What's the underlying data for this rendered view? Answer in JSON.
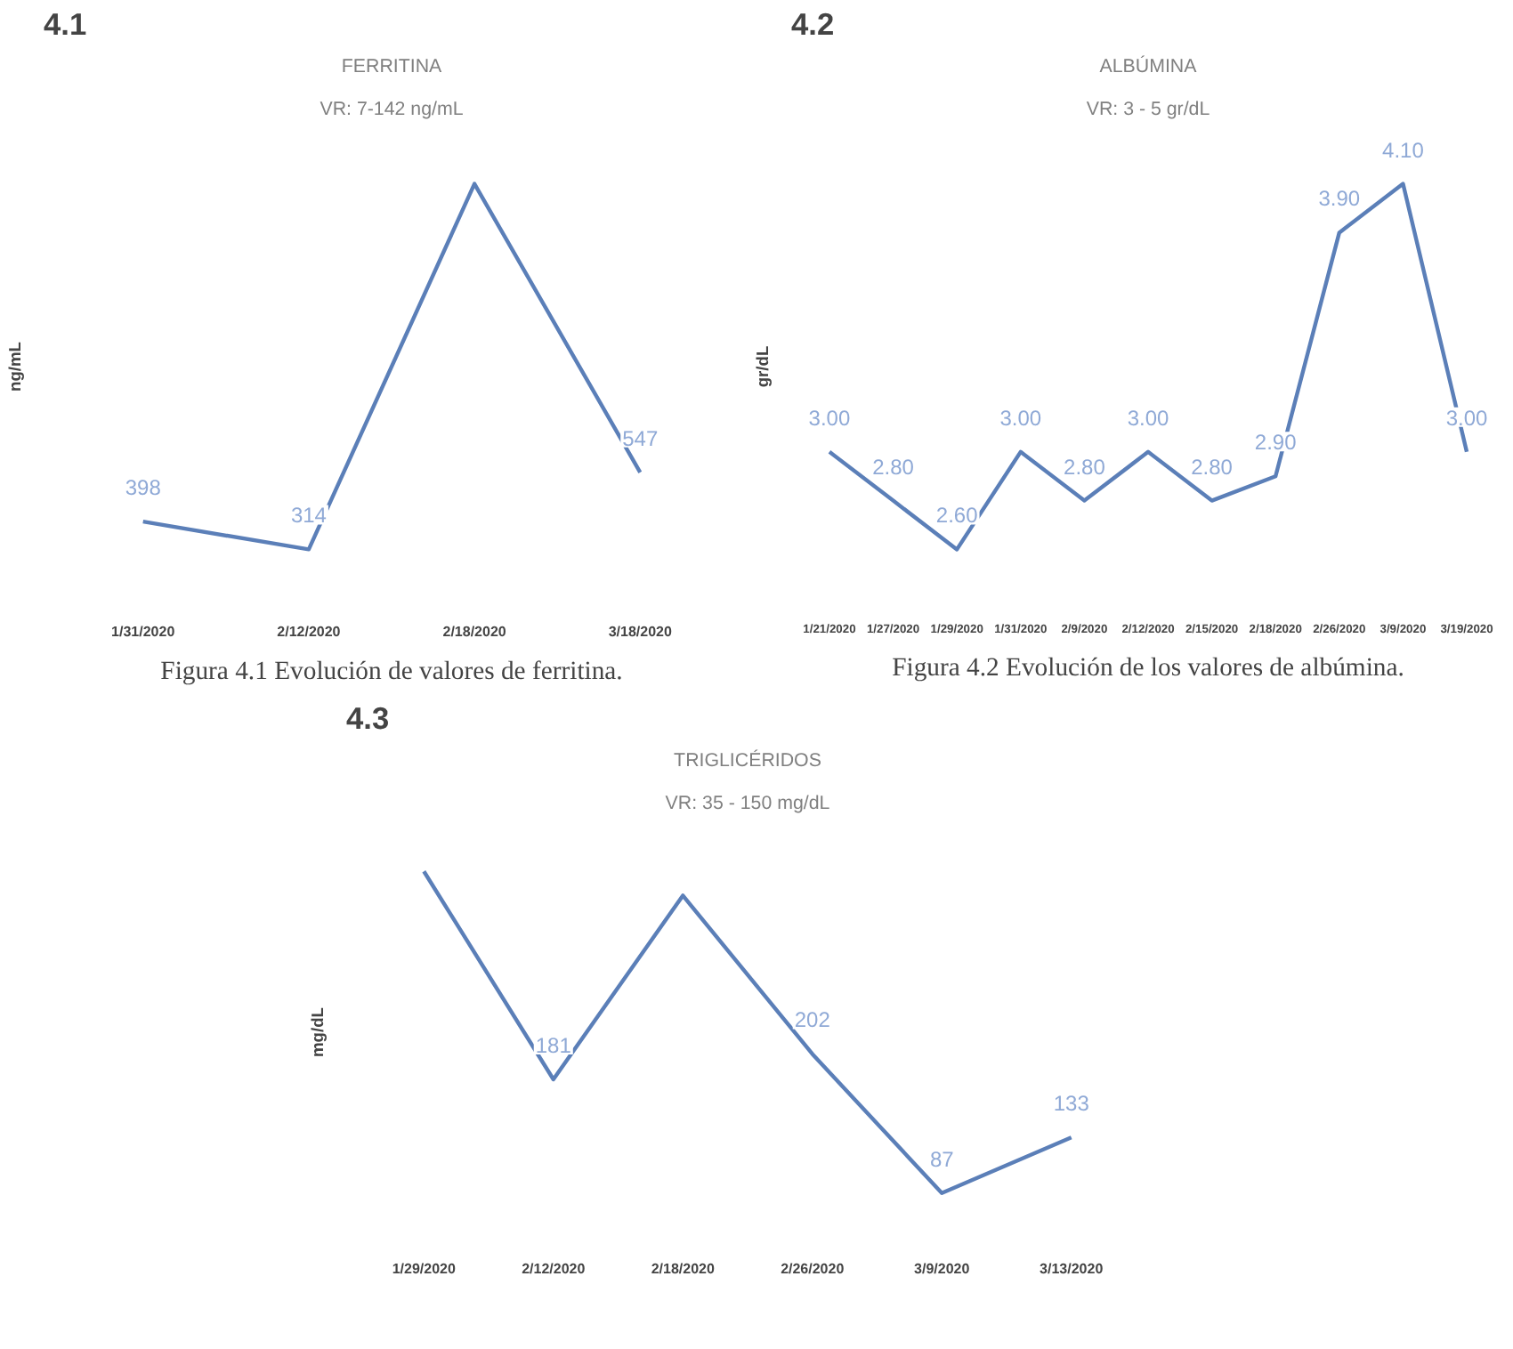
{
  "chart_data": [
    {
      "type": "line",
      "title": "FERRITINA",
      "subtitle": "VR: 7-142 ng/mL",
      "ylabel": "ng/mL",
      "annotations": [
        "4.1",
        "Figura 4.1 Evolución de valores de ferritina."
      ],
      "categories": [
        "1/31/2020",
        "2/12/2020",
        "2/18/2020",
        "3/18/2020"
      ],
      "series": [
        {
          "color": "#5b7fb8",
          "values": [
            398,
            314,
            1420,
            547
          ],
          "value_labels": [
            "398",
            "314",
            null,
            "547"
          ]
        }
      ],
      "grid": false,
      "marker": "none",
      "line_style": "solid"
    },
    {
      "type": "line",
      "title": "ALBÚMINA",
      "subtitle": "VR: 3 - 5 gr/dL",
      "ylabel": "gr/dL",
      "annotations": [
        "4.2",
        "Figura 4.2 Evolución de los valores de albúmina."
      ],
      "categories": [
        "1/21/2020",
        "1/27/2020",
        "1/29/2020",
        "1/31/2020",
        "2/9/2020",
        "2/12/2020",
        "2/15/2020",
        "2/18/2020",
        "2/26/2020",
        "3/9/2020",
        "3/19/2020"
      ],
      "series": [
        {
          "color": "#5b7fb8",
          "values": [
            3.0,
            2.8,
            2.6,
            3.0,
            2.8,
            3.0,
            2.8,
            2.9,
            3.9,
            4.1,
            3.0
          ],
          "value_labels": [
            "3.00",
            "2.80",
            "2.60",
            "3.00",
            "2.80",
            "3.00",
            "2.80",
            "2.90",
            "3.90",
            "4.10",
            "3.00"
          ]
        }
      ],
      "grid": false,
      "marker": "none",
      "line_style": "solid"
    },
    {
      "type": "line",
      "title": "TRIGLICÉRIDOS",
      "subtitle": "VR: 35 - 150 mg/dL",
      "ylabel": "mg/dL",
      "annotations": [
        "4.3"
      ],
      "categories": [
        "1/29/2020",
        "2/12/2020",
        "2/18/2020",
        "2/26/2020",
        "3/9/2020",
        "3/13/2020"
      ],
      "series": [
        {
          "color": "#5b7fb8",
          "values": [
            353,
            181,
            333,
            202,
            87,
            133
          ],
          "value_labels": [
            null,
            "181",
            null,
            "202",
            "87",
            "133"
          ]
        }
      ],
      "grid": false,
      "marker": "none",
      "line_style": "solid"
    }
  ]
}
